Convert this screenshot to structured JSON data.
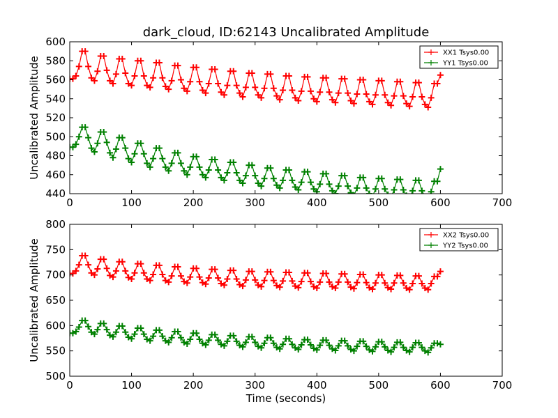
{
  "figure": {
    "title": "dark_cloud, ID:62143 Uncalibrated Amplitude"
  },
  "chart_data": [
    {
      "type": "line",
      "title": "dark_cloud, ID:62143 Uncalibrated Amplitude",
      "xlabel": "",
      "ylabel": "Uncalibrated Amplitude",
      "xlim": [
        0,
        700
      ],
      "ylim": [
        440,
        600
      ],
      "xticks": [
        "0",
        "100",
        "200",
        "300",
        "400",
        "500",
        "600",
        "700"
      ],
      "yticks": [
        "440",
        "460",
        "480",
        "500",
        "520",
        "540",
        "560",
        "580",
        "600"
      ],
      "grid": false,
      "legend_position": "top-right",
      "x": [
        0,
        5,
        10,
        15,
        20,
        25,
        30,
        35,
        40,
        45,
        50,
        55,
        60,
        65,
        70,
        75,
        80,
        85,
        90,
        95,
        100,
        105,
        110,
        115,
        120,
        125,
        130,
        135,
        140,
        145,
        150,
        155,
        160,
        165,
        170,
        175,
        180,
        185,
        190,
        195,
        200,
        205,
        210,
        215,
        220,
        225,
        230,
        235,
        240,
        245,
        250,
        255,
        260,
        265,
        270,
        275,
        280,
        285,
        290,
        295,
        300,
        305,
        310,
        315,
        320,
        325,
        330,
        335,
        340,
        345,
        350,
        355,
        360,
        365,
        370,
        375,
        380,
        385,
        390,
        395,
        400,
        405,
        410,
        415,
        420,
        425,
        430,
        435,
        440,
        445,
        450,
        455,
        460,
        465,
        470,
        475,
        480,
        485,
        490,
        495,
        500,
        505,
        510,
        515,
        520,
        525,
        530,
        535,
        540,
        545,
        550,
        555,
        560,
        565,
        570,
        575,
        580,
        585,
        590,
        595,
        600
      ],
      "series": [
        {
          "name": "XX1 Tsys0.00",
          "color": "#ff0000",
          "values": [
            561,
            561,
            564,
            574,
            590,
            590,
            574,
            562,
            559,
            569,
            585,
            585,
            570,
            559,
            556,
            566,
            582,
            582,
            567,
            556,
            554,
            564,
            580,
            580,
            564,
            554,
            552,
            562,
            578,
            578,
            562,
            553,
            550,
            559,
            575,
            575,
            560,
            551,
            548,
            558,
            573,
            573,
            558,
            549,
            546,
            556,
            571,
            571,
            556,
            547,
            544,
            554,
            569,
            569,
            554,
            546,
            542,
            552,
            567,
            567,
            552,
            544,
            541,
            551,
            566,
            566,
            551,
            543,
            539,
            549,
            564,
            564,
            549,
            541,
            538,
            548,
            563,
            563,
            548,
            540,
            537,
            547,
            562,
            562,
            547,
            539,
            536,
            546,
            561,
            561,
            546,
            538,
            535,
            545,
            560,
            560,
            545,
            537,
            534,
            544,
            559,
            559,
            544,
            536,
            533,
            543,
            558,
            558,
            543,
            535,
            532,
            542,
            557,
            557,
            542,
            534,
            531,
            541,
            556,
            556,
            565
          ]
        },
        {
          "name": "YY1 Tsys0.00",
          "color": "#008000",
          "values": [
            489,
            489,
            492,
            500,
            510,
            510,
            499,
            488,
            484,
            493,
            505,
            505,
            494,
            483,
            478,
            487,
            499,
            499,
            488,
            477,
            473,
            482,
            493,
            493,
            482,
            472,
            468,
            477,
            488,
            488,
            477,
            468,
            464,
            472,
            483,
            483,
            472,
            464,
            460,
            468,
            479,
            479,
            468,
            460,
            457,
            465,
            476,
            476,
            465,
            457,
            454,
            462,
            473,
            473,
            462,
            454,
            451,
            459,
            470,
            470,
            459,
            451,
            448,
            456,
            467,
            467,
            456,
            449,
            446,
            454,
            465,
            465,
            454,
            447,
            444,
            452,
            463,
            463,
            452,
            445,
            442,
            450,
            461,
            461,
            450,
            443,
            440,
            448,
            459,
            459,
            448,
            441,
            438,
            446,
            457,
            457,
            446,
            440,
            437,
            445,
            456,
            456,
            445,
            439,
            436,
            444,
            455,
            455,
            444,
            438,
            435,
            443,
            454,
            454,
            443,
            437,
            434,
            442,
            453,
            453,
            466
          ]
        }
      ]
    },
    {
      "type": "line",
      "title": "",
      "xlabel": "Time (seconds)",
      "ylabel": "Uncalibrated Amplitude",
      "xlim": [
        0,
        700
      ],
      "ylim": [
        500,
        800
      ],
      "xticks": [
        "0",
        "100",
        "200",
        "300",
        "400",
        "500",
        "600",
        "700"
      ],
      "yticks": [
        "500",
        "550",
        "600",
        "650",
        "700",
        "750",
        "800"
      ],
      "grid": false,
      "legend_position": "top-right",
      "x": [
        0,
        5,
        10,
        15,
        20,
        25,
        30,
        35,
        40,
        45,
        50,
        55,
        60,
        65,
        70,
        75,
        80,
        85,
        90,
        95,
        100,
        105,
        110,
        115,
        120,
        125,
        130,
        135,
        140,
        145,
        150,
        155,
        160,
        165,
        170,
        175,
        180,
        185,
        190,
        195,
        200,
        205,
        210,
        215,
        220,
        225,
        230,
        235,
        240,
        245,
        250,
        255,
        260,
        265,
        270,
        275,
        280,
        285,
        290,
        295,
        300,
        305,
        310,
        315,
        320,
        325,
        330,
        335,
        340,
        345,
        350,
        355,
        360,
        365,
        370,
        375,
        380,
        385,
        390,
        395,
        400,
        405,
        410,
        415,
        420,
        425,
        430,
        435,
        440,
        445,
        450,
        455,
        460,
        465,
        470,
        475,
        480,
        485,
        490,
        495,
        500,
        505,
        510,
        515,
        520,
        525,
        530,
        535,
        540,
        545,
        550,
        555,
        560,
        565,
        570,
        575,
        580,
        585,
        590,
        595,
        600
      ],
      "series": [
        {
          "name": "XX2 Tsys0.00",
          "color": "#ff0000",
          "values": [
            703,
            703,
            708,
            720,
            738,
            738,
            720,
            704,
            700,
            712,
            731,
            731,
            713,
            699,
            696,
            708,
            726,
            726,
            708,
            695,
            692,
            704,
            722,
            722,
            704,
            692,
            689,
            701,
            719,
            719,
            701,
            689,
            686,
            698,
            716,
            716,
            698,
            687,
            684,
            696,
            713,
            713,
            696,
            685,
            682,
            694,
            711,
            711,
            694,
            683,
            680,
            692,
            709,
            709,
            692,
            681,
            678,
            690,
            707,
            707,
            690,
            680,
            677,
            689,
            706,
            706,
            689,
            679,
            676,
            688,
            705,
            705,
            688,
            678,
            675,
            687,
            704,
            704,
            687,
            677,
            674,
            686,
            703,
            703,
            686,
            677,
            674,
            686,
            702,
            702,
            686,
            676,
            673,
            685,
            701,
            701,
            685,
            675,
            672,
            684,
            700,
            700,
            684,
            675,
            672,
            684,
            699,
            699,
            684,
            674,
            671,
            683,
            698,
            698,
            683,
            674,
            671,
            683,
            697,
            697,
            707
          ]
        },
        {
          "name": "YY2 Tsys0.00",
          "color": "#008000",
          "values": [
            585,
            585,
            588,
            597,
            610,
            610,
            598,
            587,
            583,
            592,
            604,
            604,
            592,
            581,
            578,
            587,
            599,
            599,
            587,
            577,
            574,
            583,
            595,
            595,
            583,
            573,
            570,
            579,
            591,
            591,
            579,
            570,
            567,
            576,
            588,
            588,
            576,
            567,
            564,
            573,
            585,
            585,
            573,
            565,
            562,
            571,
            582,
            582,
            571,
            563,
            560,
            569,
            580,
            580,
            569,
            561,
            558,
            567,
            578,
            578,
            567,
            559,
            556,
            565,
            576,
            576,
            565,
            557,
            554,
            563,
            574,
            574,
            563,
            556,
            553,
            562,
            572,
            572,
            562,
            555,
            552,
            561,
            571,
            571,
            561,
            554,
            551,
            560,
            570,
            570,
            560,
            553,
            550,
            559,
            569,
            569,
            559,
            552,
            549,
            558,
            568,
            568,
            558,
            551,
            548,
            557,
            567,
            567,
            557,
            551,
            548,
            557,
            566,
            566,
            557,
            550,
            547,
            556,
            565,
            565,
            563
          ]
        }
      ]
    }
  ]
}
